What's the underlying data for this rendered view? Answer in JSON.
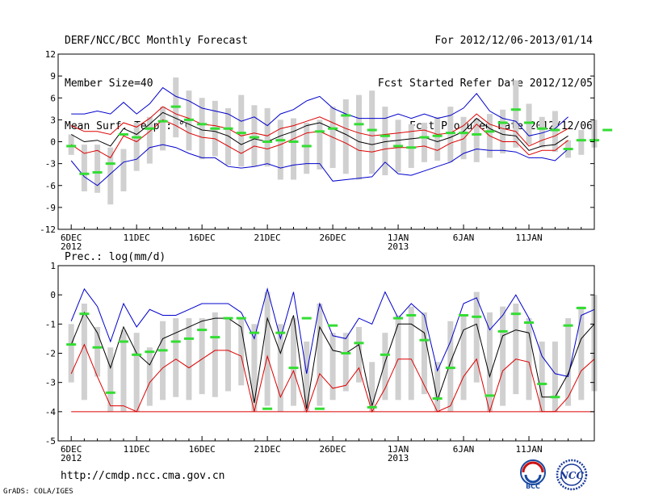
{
  "header": {
    "title": "DERF/NCC/BCC Monthly Forecast",
    "member_size": "Member Size=40",
    "variable": "Mean Surf. Temp.: °C",
    "period": "For 2012/12/06-2013/01/14",
    "fcst_started": "Fcst Started Refer Date 2012/12/05",
    "fcst_produced": "Fcst Produced Date 2012/12/06"
  },
  "footer": {
    "url": "http://cmdp.ncc.cma.gov.cn",
    "credit": "GrADS: COLA/IGES",
    "logo_left": "BCC",
    "logo_right": "NCC"
  },
  "colors": {
    "upper": "#0000cc",
    "lower": "#dd0000",
    "ensemble_mean": "#000000",
    "member_mean": "#33dd33",
    "box": "#d0d0d0"
  },
  "chart_data": [
    {
      "type": "line",
      "title": "Mean Surf. Temp.: °C",
      "x_tick_labels": [
        {
          "day": 1,
          "label": "6DEC",
          "sub": "2012"
        },
        {
          "day": 6,
          "label": "11DEC",
          "sub": ""
        },
        {
          "day": 11,
          "label": "16DEC",
          "sub": ""
        },
        {
          "day": 16,
          "label": "21DEC",
          "sub": ""
        },
        {
          "day": 21,
          "label": "26DEC",
          "sub": ""
        },
        {
          "day": 26,
          "label": "1JAN",
          "sub": "2013"
        },
        {
          "day": 31,
          "label": "6JAN",
          "sub": ""
        },
        {
          "day": 36,
          "label": "11JAN",
          "sub": ""
        }
      ],
      "xlim": [
        0,
        41
      ],
      "ylim": [
        -12,
        12
      ],
      "yticks": [
        -12,
        -9,
        -6,
        -3,
        0,
        3,
        6,
        9,
        12
      ],
      "series": [
        {
          "name": "upper",
          "color": "#0000cc",
          "values": [
            3.8,
            3.8,
            4.2,
            3.8,
            5.4,
            3.8,
            5.2,
            7.4,
            6.2,
            5.6,
            4.6,
            4.2,
            3.8,
            2.8,
            3.4,
            2.2,
            3.8,
            4.4,
            5.6,
            6.2,
            4.6,
            3.8,
            3.2,
            3.2,
            3.2,
            3.8,
            3.2,
            3.8,
            3.2,
            3.6,
            4.6,
            6.6,
            4.2,
            3.2,
            2.8,
            0.8,
            1.2,
            1.8,
            3.4
          ]
        },
        {
          "name": "upper_mid",
          "color": "#dd0000",
          "values": [
            2.2,
            1.4,
            1.4,
            1.0,
            2.6,
            2.0,
            3.2,
            4.8,
            3.8,
            3.2,
            2.4,
            2.2,
            1.8,
            0.8,
            1.2,
            0.8,
            1.8,
            2.2,
            2.8,
            3.4,
            2.6,
            1.8,
            1.2,
            0.8,
            1.0,
            1.2,
            1.4,
            1.6,
            1.0,
            1.2,
            2.2,
            3.8,
            2.4,
            1.8,
            1.4,
            -0.6,
            0.2,
            0.8,
            1.8
          ]
        },
        {
          "name": "ensemble_mean",
          "color": "#000000",
          "values": [
            1.0,
            0.0,
            0.2,
            -0.6,
            1.8,
            1.0,
            2.4,
            4.0,
            3.2,
            2.4,
            1.6,
            1.4,
            0.8,
            -0.4,
            0.4,
            0.0,
            0.8,
            1.4,
            2.2,
            2.6,
            1.8,
            1.0,
            0.0,
            -0.4,
            0.0,
            0.2,
            0.4,
            0.6,
            0.0,
            0.6,
            1.4,
            3.2,
            1.8,
            1.0,
            0.8,
            -1.2,
            -0.6,
            -0.4,
            0.8
          ]
        },
        {
          "name": "lower_mid",
          "color": "#dd0000",
          "values": [
            -0.4,
            -1.6,
            -1.2,
            -2.2,
            0.8,
            0.0,
            1.4,
            3.0,
            2.2,
            1.2,
            0.6,
            0.4,
            -0.6,
            -1.6,
            -0.6,
            -1.0,
            -0.4,
            0.4,
            1.2,
            1.4,
            0.6,
            -0.2,
            -1.2,
            -1.4,
            -1.0,
            -0.8,
            -0.8,
            -0.6,
            -1.2,
            -0.2,
            0.4,
            2.4,
            0.8,
            0.0,
            0.0,
            -1.8,
            -1.2,
            -1.2,
            0.2
          ]
        },
        {
          "name": "lower",
          "color": "#0000cc",
          "values": [
            -2.6,
            -4.8,
            -6.0,
            -4.4,
            -2.8,
            -2.4,
            -0.8,
            -0.4,
            -0.8,
            -1.6,
            -2.2,
            -2.2,
            -3.4,
            -3.6,
            -3.4,
            -3.0,
            -3.6,
            -3.2,
            -3.0,
            -3.0,
            -5.4,
            -5.2,
            -5.0,
            -4.8,
            -2.8,
            -4.4,
            -4.6,
            -4.0,
            -3.4,
            -2.8,
            -1.6,
            -1.0,
            -1.2,
            -1.2,
            -1.4,
            -2.2,
            -2.2,
            -2.6,
            -1.0
          ]
        }
      ],
      "boxes": [
        [
          -1.8,
          1.0
        ],
        [
          -6.8,
          -0.4
        ],
        [
          -7.0,
          -0.4
        ],
        [
          -8.6,
          -0.8
        ],
        [
          -6.8,
          -1.0
        ],
        [
          -4.0,
          2.6
        ],
        [
          -3.0,
          3.4
        ],
        [
          -1.2,
          4.8
        ],
        [
          0.6,
          8.8
        ],
        [
          -1.2,
          7.0
        ],
        [
          -2.4,
          6.0
        ],
        [
          -2.0,
          5.6
        ],
        [
          -3.2,
          4.6
        ],
        [
          -3.4,
          6.4
        ],
        [
          -3.4,
          5.0
        ],
        [
          -3.4,
          4.6
        ],
        [
          -5.2,
          3.0
        ],
        [
          -5.2,
          3.2
        ],
        [
          -4.4,
          2.6
        ],
        [
          -3.8,
          3.0
        ],
        [
          -3.6,
          4.8
        ],
        [
          -4.4,
          5.8
        ],
        [
          -5.2,
          6.4
        ],
        [
          -4.4,
          7.0
        ],
        [
          -4.6,
          4.8
        ],
        [
          -4.2,
          3.0
        ],
        [
          -3.6,
          2.4
        ],
        [
          -2.8,
          2.6
        ],
        [
          -2.6,
          3.4
        ],
        [
          -2.8,
          4.8
        ],
        [
          -2.4,
          3.4
        ],
        [
          -2.8,
          3.2
        ],
        [
          -2.2,
          3.8
        ],
        [
          -1.6,
          4.4
        ],
        [
          -0.8,
          8.4
        ],
        [
          -0.4,
          5.2
        ],
        [
          -0.8,
          3.4
        ],
        [
          -1.4,
          4.2
        ],
        [
          -2.2,
          0.2
        ],
        [
          -1.8,
          1.6
        ],
        [
          -0.8,
          3.0
        ]
      ],
      "member_marks": [
        -0.6,
        -4.4,
        -4.2,
        -3.0,
        1.0,
        0.6,
        1.8,
        2.8,
        4.8,
        3.0,
        2.4,
        1.8,
        1.8,
        1.2,
        0.6,
        0.0,
        0.2,
        0.0,
        -0.6,
        1.4,
        1.8,
        3.6,
        2.4,
        1.6,
        0.8,
        -0.6,
        -0.8,
        0.6,
        0.8,
        1.2,
        1.2,
        1.0,
        1.4,
        2.6,
        4.4,
        2.6,
        1.8,
        1.6,
        -1.0,
        0.2,
        0.2,
        1.6
      ]
    },
    {
      "type": "line",
      "title": "Prec.: log(mm/d)",
      "x_tick_labels": [
        {
          "day": 1,
          "label": "6DEC",
          "sub": "2012"
        },
        {
          "day": 6,
          "label": "11DEC",
          "sub": ""
        },
        {
          "day": 11,
          "label": "16DEC",
          "sub": ""
        },
        {
          "day": 16,
          "label": "21DEC",
          "sub": ""
        },
        {
          "day": 21,
          "label": "26DEC",
          "sub": ""
        },
        {
          "day": 26,
          "label": "1JAN",
          "sub": "2013"
        },
        {
          "day": 31,
          "label": "6JAN",
          "sub": ""
        },
        {
          "day": 36,
          "label": "11JAN",
          "sub": ""
        }
      ],
      "xlim": [
        0,
        41
      ],
      "ylim": [
        -5,
        1
      ],
      "yticks": [
        -5,
        -4,
        -3,
        -2,
        -1,
        0,
        1
      ],
      "series": [
        {
          "name": "upper",
          "color": "#0000cc",
          "values": [
            -0.9,
            0.2,
            -0.4,
            -1.6,
            -0.3,
            -1.1,
            -0.5,
            -0.7,
            -0.7,
            -0.5,
            -0.3,
            -0.3,
            -0.3,
            -0.6,
            -1.5,
            0.2,
            -1.5,
            0.1,
            -2.7,
            -0.3,
            -1.4,
            -1.5,
            -0.8,
            -1.0,
            0.1,
            -0.8,
            -0.3,
            -0.7,
            -2.6,
            -1.6,
            -0.3,
            -0.1,
            -1.2,
            -0.7,
            0.0,
            -0.8,
            -2.1,
            -2.7,
            -2.8,
            -0.7,
            -0.5
          ]
        },
        {
          "name": "ensemble_mean",
          "color": "#000000",
          "values": [
            -1.7,
            -0.6,
            -1.3,
            -2.5,
            -1.1,
            -2.0,
            -2.4,
            -1.5,
            -1.3,
            -1.1,
            -0.9,
            -0.8,
            -0.8,
            -1.1,
            -3.7,
            -0.8,
            -2.0,
            -0.7,
            -3.9,
            -1.1,
            -1.9,
            -2.0,
            -1.7,
            -3.8,
            -2.3,
            -1.0,
            -1.0,
            -1.3,
            -3.6,
            -2.3,
            -1.2,
            -1.0,
            -2.8,
            -1.4,
            -1.2,
            -1.3,
            -3.5,
            -3.5,
            -2.7,
            -1.5,
            -1.0
          ]
        },
        {
          "name": "lower",
          "color": "#dd0000",
          "values": [
            -2.7,
            -1.7,
            -2.8,
            -3.8,
            -3.8,
            -4.0,
            -3.0,
            -2.5,
            -2.2,
            -2.5,
            -2.2,
            -1.9,
            -1.9,
            -2.1,
            -4.0,
            -2.1,
            -3.5,
            -2.6,
            -4.0,
            -2.7,
            -3.2,
            -3.1,
            -2.5,
            -4.0,
            -3.2,
            -2.2,
            -2.2,
            -3.1,
            -4.0,
            -3.8,
            -2.8,
            -2.2,
            -4.0,
            -2.6,
            -2.2,
            -2.3,
            -4.0,
            -4.0,
            -3.5,
            -2.6,
            -2.2
          ]
        }
      ],
      "floor": -4.0,
      "boxes": [
        [
          -3.0,
          -1.0
        ],
        [
          -3.6,
          -0.3
        ],
        [
          -2.8,
          -1.1
        ],
        [
          -4.0,
          -1.8
        ],
        [
          -4.0,
          -1.2
        ],
        [
          -4.0,
          -1.3
        ],
        [
          -3.8,
          -1.8
        ],
        [
          -3.6,
          -0.9
        ],
        [
          -3.5,
          -0.8
        ],
        [
          -3.6,
          -0.8
        ],
        [
          -3.4,
          -0.8
        ],
        [
          -3.5,
          -0.6
        ],
        [
          -3.3,
          -0.8
        ],
        [
          -3.1,
          -0.8
        ],
        [
          -4.0,
          -1.0
        ],
        [
          -3.8,
          0.1
        ],
        [
          -4.0,
          -1.0
        ],
        [
          -3.8,
          -0.8
        ],
        [
          -4.0,
          -1.6
        ],
        [
          -3.8,
          -0.3
        ],
        [
          -3.6,
          -1.3
        ],
        [
          -3.3,
          -1.3
        ],
        [
          -3.0,
          -1.1
        ],
        [
          -4.0,
          -2.3
        ],
        [
          -3.6,
          -1.3
        ],
        [
          -3.6,
          -0.7
        ],
        [
          -3.6,
          -0.4
        ],
        [
          -3.4,
          -0.6
        ],
        [
          -4.0,
          -2.3
        ],
        [
          -4.0,
          -0.9
        ],
        [
          -3.6,
          -0.7
        ],
        [
          -3.0,
          0.1
        ],
        [
          -4.0,
          -0.6
        ],
        [
          -3.8,
          -0.4
        ],
        [
          -3.4,
          -0.3
        ],
        [
          -3.6,
          -0.8
        ],
        [
          -4.0,
          -1.6
        ],
        [
          -4.0,
          -1.6
        ],
        [
          -3.8,
          -0.8
        ],
        [
          -3.6,
          -0.4
        ],
        [
          -3.3,
          0.0
        ]
      ],
      "member_marks": [
        -1.7,
        -0.65,
        -1.8,
        -3.35,
        -1.6,
        -2.05,
        -1.95,
        -1.9,
        -1.6,
        -1.5,
        -1.2,
        -1.45,
        -0.8,
        -0.8,
        -1.3,
        -3.9,
        -1.3,
        -2.5,
        -0.8,
        -3.9,
        -1.05,
        -2.0,
        -1.65,
        -3.85,
        -2.05,
        -0.8,
        -0.7,
        -1.55,
        -3.55,
        -2.5,
        -0.7,
        -0.75,
        -3.45,
        -1.25,
        -0.65,
        -0.95,
        -3.05,
        -3.5,
        -1.05,
        -0.45
      ]
    }
  ]
}
